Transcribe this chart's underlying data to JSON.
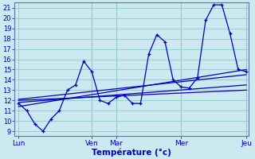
{
  "title": "Température (°c)",
  "bg_color": "#cce8f0",
  "line_color": "#0000bb",
  "grid_color": "#99cccc",
  "x_labels": [
    "Lun",
    "Ven",
    "Mar",
    "Mer",
    "Jeu"
  ],
  "x_ticks_pos": [
    0,
    9,
    12,
    20,
    28
  ],
  "x_total": 28,
  "ylim": [
    8.5,
    21.5
  ],
  "yticks": [
    9,
    10,
    11,
    12,
    13,
    14,
    15,
    16,
    17,
    18,
    19,
    20,
    21
  ],
  "series1_x": [
    0,
    1,
    2,
    3,
    4,
    5,
    6,
    7,
    8,
    9,
    10,
    11,
    12,
    13,
    14,
    15,
    16,
    17,
    18,
    19,
    20,
    21,
    22,
    23,
    24,
    25,
    26,
    27,
    28
  ],
  "series1_y": [
    11.7,
    11.0,
    9.7,
    9.0,
    10.2,
    11.0,
    13.0,
    13.5,
    15.8,
    14.8,
    12.0,
    11.7,
    12.3,
    12.5,
    11.7,
    11.7,
    16.5,
    18.4,
    17.7,
    14.0,
    13.3,
    13.2,
    14.2,
    19.8,
    21.3,
    21.3,
    18.5,
    15.0,
    14.8
  ],
  "trend1_x": [
    0,
    28
  ],
  "trend1_y": [
    11.8,
    13.5
  ],
  "trend2_x": [
    0,
    28
  ],
  "trend2_y": [
    11.4,
    15.0
  ],
  "trend3_x": [
    0,
    28
  ],
  "trend3_y": [
    12.0,
    13.0
  ],
  "trend4_x": [
    0,
    28
  ],
  "trend4_y": [
    12.1,
    14.5
  ]
}
